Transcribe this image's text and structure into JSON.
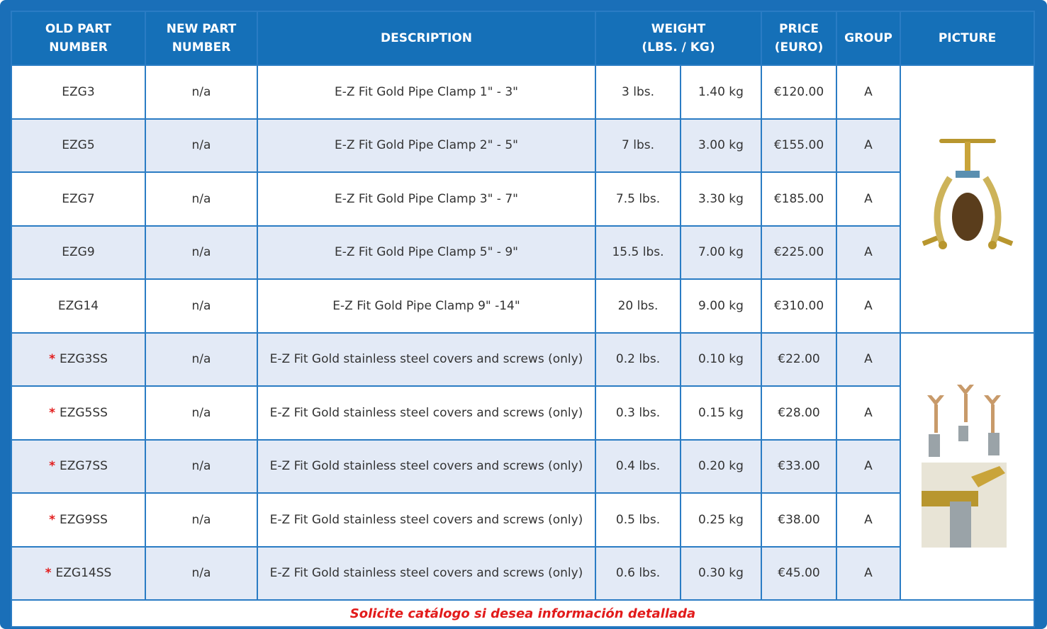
{
  "table": {
    "header": [
      [
        "OLD PART",
        "NUMBER"
      ],
      [
        "NEW PART",
        "NUMBER"
      ],
      [
        "DESCRIPTION"
      ],
      [
        "WEIGHT",
        "(LBS. / KG)"
      ],
      [
        "PRICE",
        "(EURO)"
      ],
      [
        "GROUP"
      ],
      [
        "PICTURE"
      ]
    ],
    "rows": [
      {
        "old": "EZG3",
        "new": "n/a",
        "description": "E-Z Fit Gold Pipe Clamp 1\" - 3\"",
        "lbs": "3 lbs.",
        "kg": "1.40 kg",
        "price": "€120.00",
        "group": "A"
      },
      {
        "old": "EZG5",
        "new": "n/a",
        "description": "E-Z Fit Gold Pipe Clamp 2\" - 5\"",
        "lbs": "7 lbs.",
        "kg": "3.00 kg",
        "price": "€155.00",
        "group": "A"
      },
      {
        "old": "EZG7",
        "new": "n/a",
        "description": "E-Z Fit Gold Pipe Clamp 3\" - 7\"",
        "lbs": "7.5 lbs.",
        "kg": "3.30 kg",
        "price": "€185.00",
        "group": "A"
      },
      {
        "old": "EZG9",
        "new": "n/a",
        "description": "E-Z Fit Gold Pipe Clamp 5\" - 9\"",
        "lbs": "15.5 lbs.",
        "kg": "7.00 kg",
        "price": "€225.00",
        "group": "A"
      },
      {
        "old": "EZG14",
        "new": "n/a",
        "description": "E-Z Fit Gold Pipe Clamp 9\" -14\"",
        "lbs": "20 lbs.",
        "kg": "9.00 kg",
        "price": "€310.00",
        "group": "A"
      },
      {
        "note": "*",
        "old": "EZG3SS",
        "new": "n/a",
        "description": "E-Z Fit Gold stainless steel covers and screws (only)",
        "lbs": "0.2 lbs.",
        "kg": "0.10 kg",
        "price": "€22.00",
        "group": "A"
      },
      {
        "note": "*",
        "old": "EZG5SS",
        "new": "n/a",
        "description": "E-Z Fit Gold stainless steel covers and screws (only)",
        "lbs": "0.3 lbs.",
        "kg": "0.15 kg",
        "price": "€28.00",
        "group": "A"
      },
      {
        "note": "*",
        "old": "EZG7SS",
        "new": "n/a",
        "description": "E-Z Fit Gold stainless steel covers and screws (only)",
        "lbs": "0.4 lbs.",
        "kg": "0.20 kg",
        "price": "€33.00",
        "group": "A"
      },
      {
        "note": "*",
        "old": "EZG9SS",
        "new": "n/a",
        "description": "E-Z Fit Gold stainless steel covers and screws (only)",
        "lbs": "0.5 lbs.",
        "kg": "0.25 kg",
        "price": "€38.00",
        "group": "A"
      },
      {
        "note": "*",
        "old": "EZG14SS",
        "new": "n/a",
        "description": "E-Z Fit Gold stainless steel covers and screws (only)",
        "lbs": "0.6 lbs.",
        "kg": "0.30 kg",
        "price": "€45.00",
        "group": "A"
      }
    ],
    "footer": "Solicite catálogo si desea información detallada"
  }
}
